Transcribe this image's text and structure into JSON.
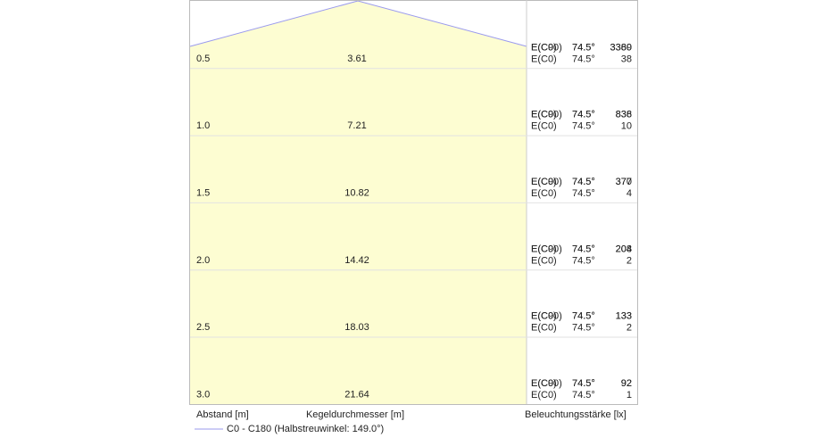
{
  "rows": [
    {
      "distance": "0.5",
      "diameter": "3.61",
      "upper": [
        {
          "label": "E(C0)",
          "angle": "74.5°",
          "value": "3360"
        },
        {
          "label": "E(C90)",
          "angle": "74.5°",
          "value": "3389"
        }
      ],
      "lower": {
        "label": "E(C0)",
        "angle": "74.5°",
        "value": "38"
      }
    },
    {
      "distance": "1.0",
      "diameter": "7.21",
      "upper": [
        {
          "label": "E(C0)",
          "angle": "74.5°",
          "value": "836"
        },
        {
          "label": "E(C90)",
          "angle": "74.5°",
          "value": "838"
        }
      ],
      "lower": {
        "label": "E(C0)",
        "angle": "74.5°",
        "value": "10"
      }
    },
    {
      "distance": "1.5",
      "diameter": "10.82",
      "upper": [
        {
          "label": "E(C0)",
          "angle": "74.5°",
          "value": "370"
        },
        {
          "label": "E(C90)",
          "angle": "74.5°",
          "value": "377"
        }
      ],
      "lower": {
        "label": "E(C0)",
        "angle": "74.5°",
        "value": "4"
      }
    },
    {
      "distance": "2.0",
      "diameter": "14.42",
      "upper": [
        {
          "label": "E(C0)",
          "angle": "74.5°",
          "value": "204"
        },
        {
          "label": "E(C90)",
          "angle": "74.5°",
          "value": "208"
        }
      ],
      "lower": {
        "label": "E(C0)",
        "angle": "74.5°",
        "value": "2"
      }
    },
    {
      "distance": "2.5",
      "diameter": "18.03",
      "upper": [
        {
          "label": "E(C0)",
          "angle": "74.5°",
          "value": "133"
        },
        {
          "label": "E(C90)",
          "angle": "74.5°",
          "value": "133"
        }
      ],
      "lower": {
        "label": "E(C0)",
        "angle": "74.5°",
        "value": "2"
      }
    },
    {
      "distance": "3.0",
      "diameter": "21.64",
      "upper": [
        {
          "label": "E(C0)",
          "angle": "74.5°",
          "value": "92"
        },
        {
          "label": "E(C90)",
          "angle": "74.5°",
          "value": "92"
        }
      ],
      "lower": {
        "label": "E(C0)",
        "angle": "74.5°",
        "value": "1"
      }
    }
  ],
  "footer": {
    "distance_label": "Abstand [m]",
    "diameter_label": "Kegeldurchmesser [m]",
    "illuminance_label": "Beleuchtungsstärke [lx]"
  },
  "legend": {
    "label": "C0 - C180 (Halbstreuwinkel: 149.0°)"
  }
}
